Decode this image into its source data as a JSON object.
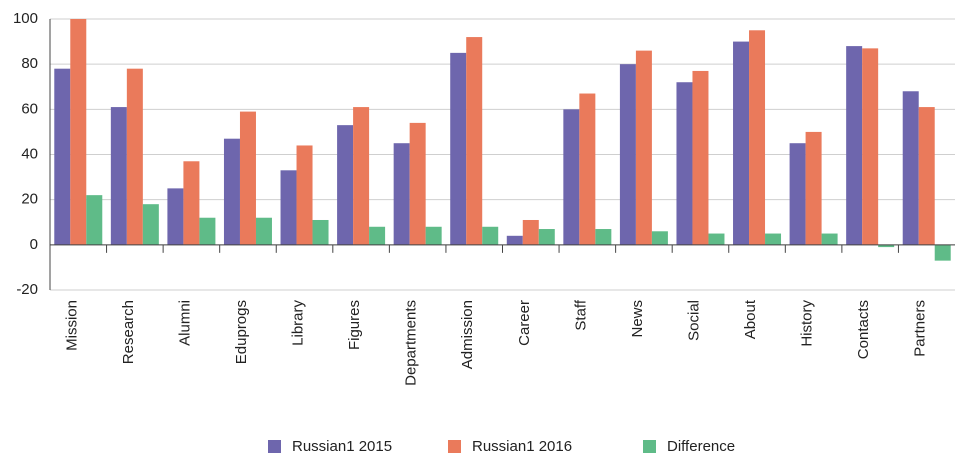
{
  "chart_data": {
    "type": "bar",
    "categories": [
      "Mission",
      "Research",
      "Alumni",
      "Eduprogs",
      "Library",
      "Figures",
      "Departments",
      "Admission",
      "Career",
      "Staff",
      "News",
      "Social",
      "About",
      "History",
      "Contacts",
      "Partners"
    ],
    "series": [
      {
        "name": "Russian1 2015",
        "color": "#6e66ad",
        "values": [
          78,
          61,
          25,
          47,
          33,
          53,
          45,
          85,
          4,
          60,
          80,
          72,
          90,
          45,
          88,
          68
        ]
      },
      {
        "name": "Russian1 2016",
        "color": "#ea7a5b",
        "values": [
          100,
          78,
          37,
          59,
          44,
          61,
          54,
          92,
          11,
          67,
          86,
          77,
          95,
          50,
          87,
          61
        ]
      },
      {
        "name": "Difference",
        "color": "#5fbb88",
        "values": [
          22,
          18,
          12,
          12,
          11,
          8,
          8,
          8,
          7,
          7,
          6,
          5,
          5,
          5,
          -1,
          -7
        ]
      }
    ],
    "ylim": [
      -20,
      100
    ],
    "yticks": [
      -20,
      0,
      20,
      40,
      60,
      80,
      100
    ],
    "grid": true,
    "legend": "bottom"
  }
}
